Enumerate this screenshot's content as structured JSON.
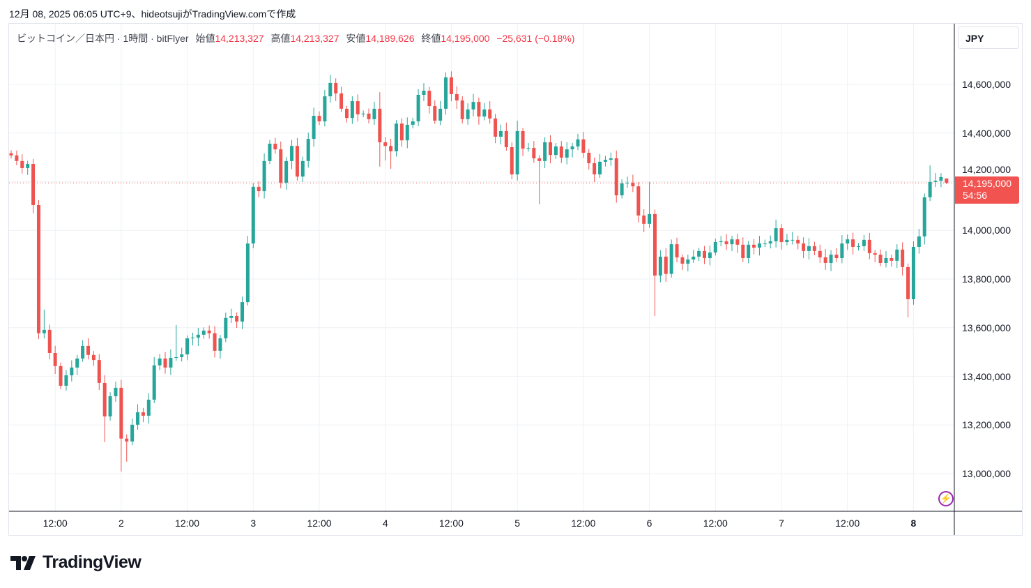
{
  "caption": "12月 08, 2025 06:05 UTC+9、hideotsujiがTradingView.comで作成",
  "legend": {
    "symbol": "ビットコイン／日本円 · 1時間 · bitFlyer",
    "open_label": "始値",
    "open": "14,213,327",
    "high_label": "高値",
    "high": "14,213,327",
    "low_label": "安値",
    "low": "14,189,626",
    "close_label": "終値",
    "close": "14,195,000",
    "change": "−25,631 (−0.18%)"
  },
  "currency_button": "JPY",
  "last_price": {
    "price": "14,195,000",
    "countdown": "54:56"
  },
  "brand": "TradingView",
  "colors": {
    "up": "#26a69a",
    "down": "#ef5350",
    "tag": "#f05350",
    "grid": "#eef1f5"
  },
  "chart_data": {
    "type": "candlestick",
    "title": "ビットコイン／日本円 · 1時間 · bitFlyer",
    "interval": "1h",
    "ylim": [
      12850000,
      14700000
    ],
    "y_ticks": [
      "14,600,000",
      "14,400,000",
      "14,200,000",
      "14,000,000",
      "13,800,000",
      "13,600,000",
      "13,400,000",
      "13,200,000",
      "13,000,000"
    ],
    "y_tick_values": [
      14600000,
      14400000,
      14200000,
      14000000,
      13800000,
      13600000,
      13400000,
      13200000,
      13000000
    ],
    "x_ticks": [
      {
        "label": "12:00",
        "index": 8
      },
      {
        "label": "2",
        "index": 20,
        "bold": false
      },
      {
        "label": "12:00",
        "index": 32
      },
      {
        "label": "3",
        "index": 44
      },
      {
        "label": "12:00",
        "index": 56
      },
      {
        "label": "4",
        "index": 68
      },
      {
        "label": "12:00",
        "index": 80
      },
      {
        "label": "5",
        "index": 92
      },
      {
        "label": "12:00",
        "index": 104
      },
      {
        "label": "6",
        "index": 116
      },
      {
        "label": "12:00",
        "index": 128
      },
      {
        "label": "7",
        "index": 140
      },
      {
        "label": "12:00",
        "index": 152
      },
      {
        "label": "8",
        "index": 164,
        "bold": true
      }
    ],
    "first_open": 14317000,
    "closes": [
      14308000,
      14285000,
      14256000,
      14273000,
      14104000,
      13577000,
      13591000,
      13496000,
      13442000,
      13361000,
      13404000,
      13436000,
      13473000,
      13525000,
      13488000,
      13467000,
      13373000,
      13235000,
      13318000,
      13353000,
      13144000,
      13132000,
      13201000,
      13252000,
      13238000,
      13304000,
      13445000,
      13473000,
      13436000,
      13476000,
      13479000,
      13490000,
      13556000,
      13559000,
      13571000,
      13588000,
      13577000,
      13505000,
      13556000,
      13640000,
      13648000,
      13625000,
      13705000,
      13946000,
      14179000,
      14161000,
      14285000,
      14356000,
      14333000,
      14196000,
      14285000,
      14347000,
      14221000,
      14285000,
      14376000,
      14471000,
      14448000,
      14551000,
      14606000,
      14563000,
      14500000,
      14462000,
      14531000,
      14477000,
      14480000,
      14457000,
      14500000,
      14362000,
      14347000,
      14325000,
      14439000,
      14370000,
      14434000,
      14448000,
      14557000,
      14574000,
      14511000,
      14451000,
      14500000,
      14629000,
      14560000,
      14534000,
      14457000,
      14497000,
      14528000,
      14468000,
      14497000,
      14460000,
      14385000,
      14408000,
      14342000,
      14230000,
      14408000,
      14336000,
      14339000,
      14296000,
      14285000,
      14362000,
      14310000,
      14345000,
      14299000,
      14333000,
      14345000,
      14374000,
      14319000,
      14276000,
      14230000,
      14282000,
      14290000,
      14296000,
      14144000,
      14193000,
      14196000,
      14181000,
      14061000,
      14027000,
      14067000,
      13814000,
      13892000,
      13821000,
      13943000,
      13889000,
      13863000,
      13880000,
      13892000,
      13915000,
      13886000,
      13909000,
      13952000,
      13955000,
      13943000,
      13963000,
      13941000,
      13886000,
      13941000,
      13929000,
      13946000,
      13946000,
      13955000,
      14009000,
      13952000,
      13961000,
      13961000,
      13946000,
      13915000,
      13935000,
      13915000,
      13889000,
      13866000,
      13900000,
      13886000,
      13946000,
      13963000,
      13932000,
      13935000,
      13961000,
      13906000,
      13900000,
      13866000,
      13886000,
      13875000,
      13921000,
      13849000,
      13717000,
      13932000,
      13975000,
      14136000,
      14199000,
      14204000,
      14219000,
      14195000
    ],
    "last_candle": {
      "open": 14213327,
      "high": 14213327,
      "low": 14189626,
      "close": 14195000
    },
    "wick_extremes": {
      "5": {
        "high": 14124000,
        "low": 13553000
      },
      "6": {
        "high": 13674000
      },
      "17": {
        "low": 13129000
      },
      "20": {
        "low": 13009000
      },
      "21": {
        "low": 13049000
      },
      "30": {
        "high": 13611000
      },
      "58": {
        "high": 14640000
      },
      "67": {
        "high": 14568000,
        "low": 14262000
      },
      "68": {
        "low": 14287000
      },
      "69": {
        "low": 14253000
      },
      "79": {
        "high": 14650000
      },
      "92": {
        "high": 14451000
      },
      "96": {
        "low": 14107000
      },
      "116": {
        "high": 14199000
      },
      "117": {
        "low": 13648000
      },
      "139": {
        "high": 14044000
      },
      "163": {
        "low": 13642000
      },
      "167": {
        "high": 14267000
      }
    },
    "current_price_line": 14195000
  }
}
